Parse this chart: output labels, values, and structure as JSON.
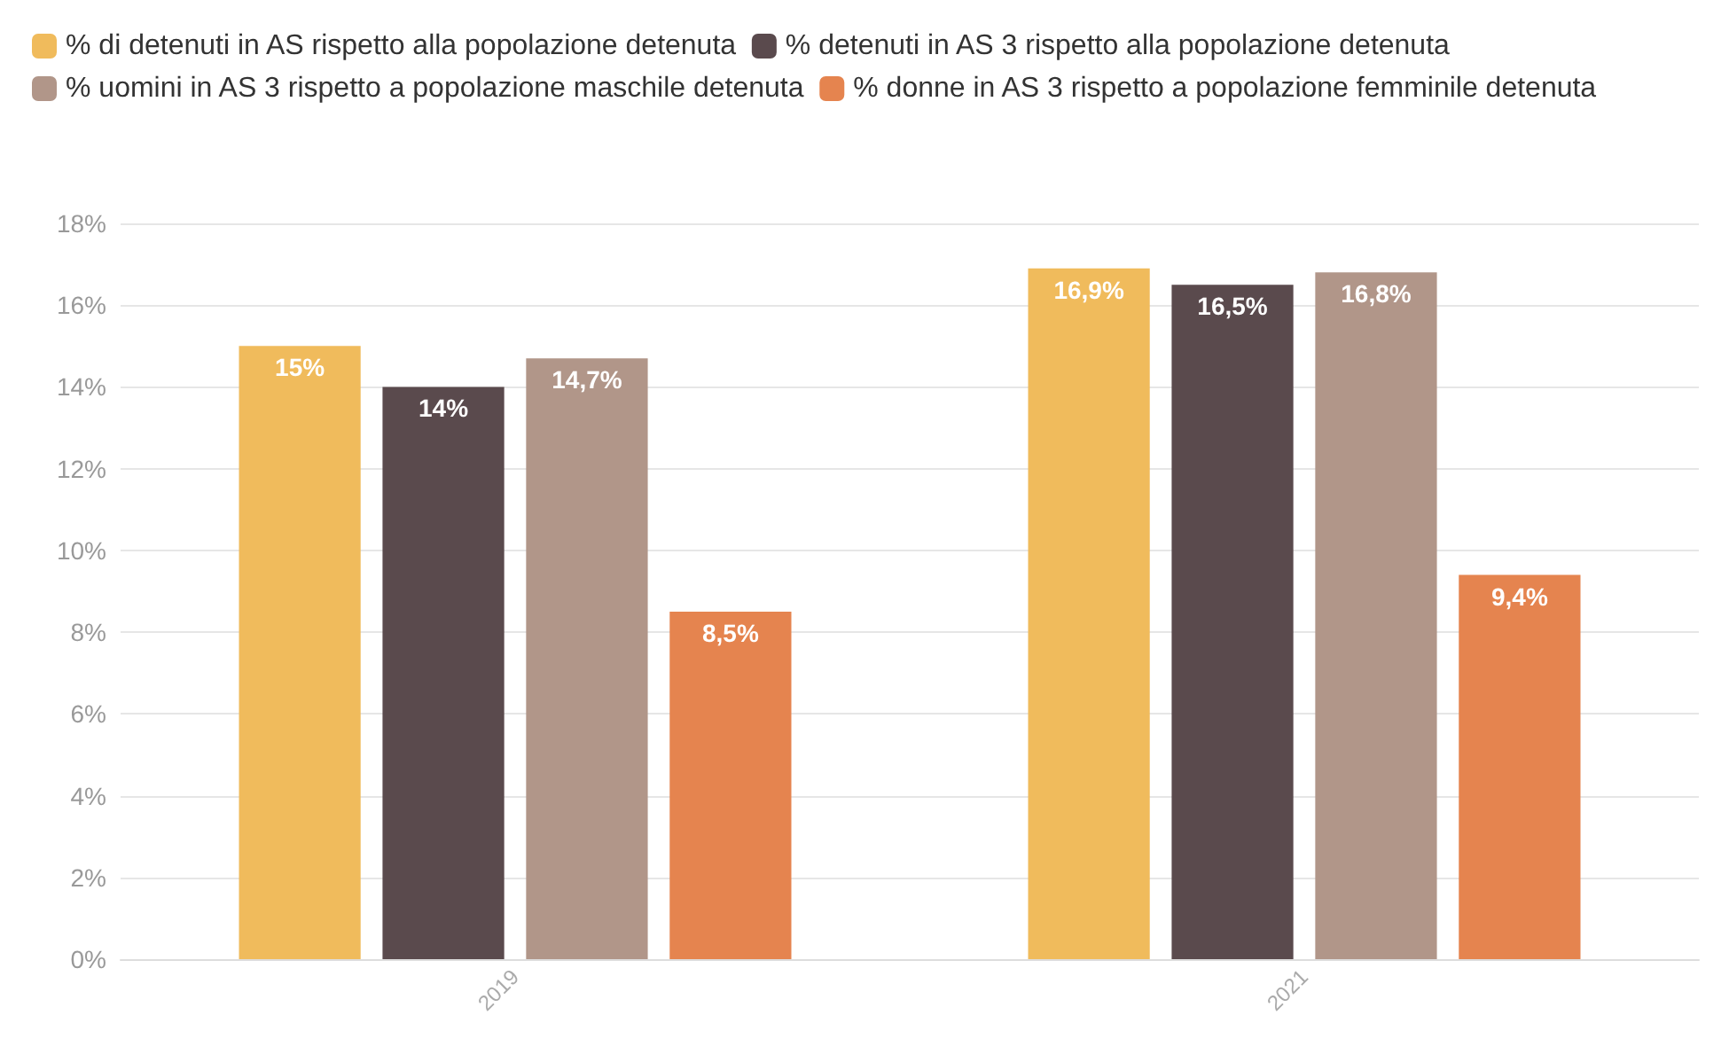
{
  "chart_data": {
    "type": "bar",
    "categories": [
      "2019",
      "2021"
    ],
    "series": [
      {
        "name": "% di detenuti in AS rispetto alla popolazione detenuta",
        "color": "#f0bb5c",
        "values": [
          15,
          16.9
        ],
        "value_labels": [
          "15%",
          "16,9%"
        ]
      },
      {
        "name": "% detenuti in AS 3 rispetto alla popolazione detenuta",
        "color": "#5a4a4d",
        "values": [
          14,
          16.5
        ],
        "value_labels": [
          "14%",
          "16,5%"
        ]
      },
      {
        "name": "% uomini in AS 3 rispetto a popolazione maschile detenuta",
        "color": "#b19689",
        "values": [
          14.7,
          16.8
        ],
        "value_labels": [
          "14,7%",
          "16,8%"
        ]
      },
      {
        "name": "% donne in AS 3 rispetto a popolazione femminile detenuta",
        "color": "#e5844f",
        "values": [
          8.5,
          9.4
        ],
        "value_labels": [
          "8,5%",
          "9,4%"
        ]
      }
    ],
    "ylim": [
      0,
      18
    ],
    "yticks": [
      {
        "value": 0,
        "label": "0%"
      },
      {
        "value": 2,
        "label": "2%"
      },
      {
        "value": 4,
        "label": "4%"
      },
      {
        "value": 6,
        "label": "6%"
      },
      {
        "value": 8,
        "label": "8%"
      },
      {
        "value": 10,
        "label": "10%"
      },
      {
        "value": 12,
        "label": "12%"
      },
      {
        "value": 14,
        "label": "14%"
      },
      {
        "value": 16,
        "label": "16%"
      },
      {
        "value": 18,
        "label": "18%"
      }
    ],
    "grid": "y",
    "legend": "top left"
  }
}
